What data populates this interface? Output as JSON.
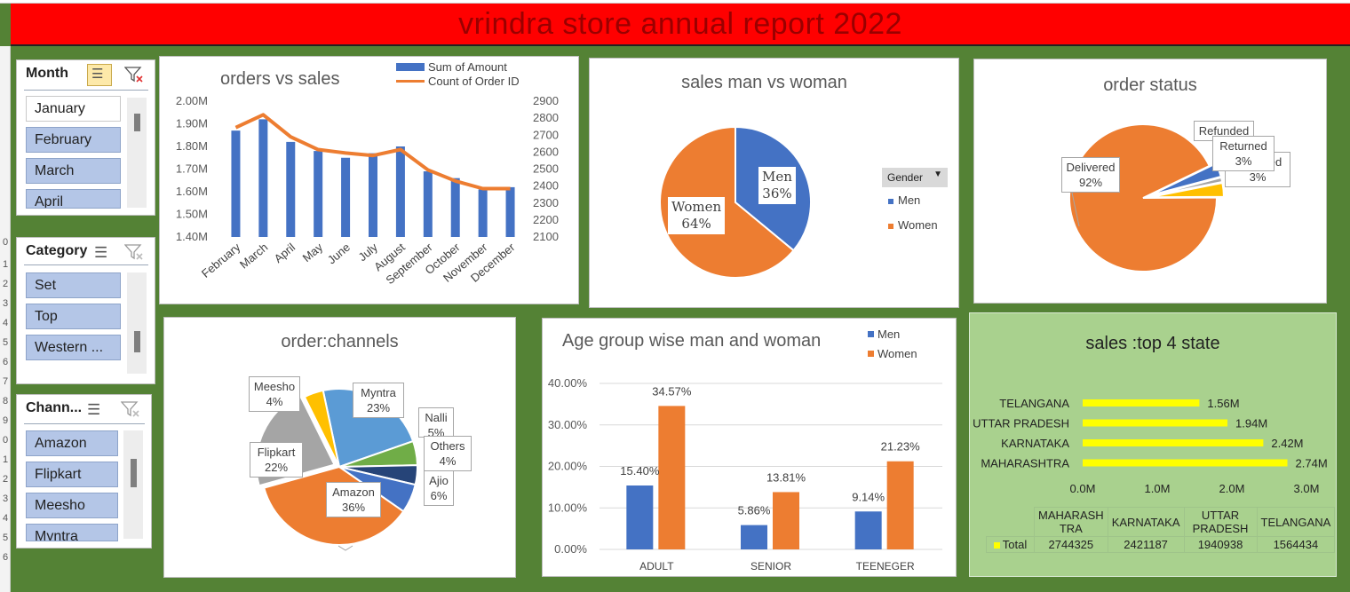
{
  "title": "vrindra store annual report 2022",
  "row_numbers": [
    "0",
    "1",
    "2",
    "3",
    "4",
    "5",
    "6",
    "7",
    "8",
    "9",
    "0",
    "1",
    "2",
    "3",
    "4",
    "5",
    "6"
  ],
  "slicers": {
    "month": {
      "header": "Month",
      "items": [
        "January",
        "February",
        "March",
        "April"
      ],
      "selected": [
        false,
        true,
        true,
        true
      ]
    },
    "category": {
      "header": "Category",
      "items": [
        "Set",
        "Top",
        "Western ..."
      ]
    },
    "channel": {
      "header": "Chann...",
      "items": [
        "Amazon",
        "Flipkart",
        "Meesho",
        "Myntra"
      ]
    }
  },
  "charts": {
    "orders_vs_sales": {
      "title": "orders vs sales",
      "legend": [
        "Sum of Amount",
        "Count of Order ID"
      ],
      "left_ticks": [
        "2.00M",
        "1.90M",
        "1.80M",
        "1.70M",
        "1.60M",
        "1.50M",
        "1.40M"
      ],
      "right_ticks": [
        "2900",
        "2800",
        "2700",
        "2600",
        "2500",
        "2400",
        "2300",
        "2200",
        "2100"
      ],
      "categories": [
        "February",
        "March",
        "April",
        "May",
        "June",
        "July",
        "August",
        "September",
        "October",
        "November",
        "December"
      ]
    },
    "gender": {
      "title": "sales man vs woman",
      "legend_header": "Gender",
      "labels": [
        {
          "name": "Men",
          "pct": "36%"
        },
        {
          "name": "Women",
          "pct": "64%"
        }
      ]
    },
    "status": {
      "title": "order status",
      "labels": {
        "delivered": "Delivered",
        "delivered_pct": "92%",
        "refunded": "Refunded",
        "returned": "Returned",
        "returned_pct": "3%",
        "cancelled_partial": "ed",
        "cancelled_pct": "3%"
      }
    },
    "channels": {
      "title": "order:channels",
      "labels": {
        "meesho": "Meesho",
        "meesho_pct": "4%",
        "myntra": "Myntra",
        "myntra_pct": "23%",
        "nalli": "Nalli",
        "nalli_pct": "5%",
        "others": "Others",
        "others_pct": "4%",
        "ajio": "Ajio",
        "ajio_pct": "6%",
        "flipkart": "Flipkart",
        "flipkart_pct": "22%",
        "amazon": "Amazon",
        "amazon_pct": "36%"
      }
    },
    "age": {
      "title": "Age group wise man and woman",
      "legend": [
        "Men",
        "Women"
      ],
      "ticks": [
        "40.00%",
        "30.00%",
        "20.00%",
        "10.00%",
        "0.00%"
      ],
      "categories": [
        "ADULT",
        "SENIOR",
        "TEENEGER"
      ],
      "men_labels": [
        "15.40%",
        "5.86%",
        "9.14%"
      ],
      "women_labels": [
        "34.57%",
        "13.81%",
        "21.23%"
      ]
    },
    "states": {
      "title": "sales :top 4 state",
      "names": [
        "TELANGANA",
        "UTTAR PRADESH",
        "KARNATAKA",
        "MAHARASHTRA"
      ],
      "value_labels": [
        "1.56M",
        "1.94M",
        "2.42M",
        "2.74M"
      ],
      "ticks": [
        "0.0M",
        "1.0M",
        "2.0M",
        "3.0M"
      ],
      "table_headers": [
        "MAHARASH TRA",
        "KARNATAKA",
        "UTTAR PRADESH",
        "TELANGANA"
      ],
      "row_label": "Total",
      "row_values": [
        "2744325",
        "2421187",
        "1940938",
        "1564434"
      ]
    }
  },
  "chart_data": [
    {
      "type": "bar",
      "title": "orders vs sales",
      "categories": [
        "February",
        "March",
        "April",
        "May",
        "June",
        "July",
        "August",
        "September",
        "October",
        "November",
        "December"
      ],
      "series": [
        {
          "name": "Sum of Amount",
          "values": [
            1.87,
            1.92,
            1.82,
            1.78,
            1.75,
            1.77,
            1.8,
            1.69,
            1.66,
            1.61,
            1.62
          ],
          "unit": "M"
        },
        {
          "name": "Count of Order ID",
          "type": "line",
          "axis": "secondary",
          "values": [
            2745,
            2820,
            2690,
            2615,
            2595,
            2580,
            2615,
            2495,
            2430,
            2385,
            2385
          ]
        }
      ],
      "ylim": [
        1.4,
        2.0
      ],
      "y2lim": [
        2100,
        2900
      ]
    },
    {
      "type": "pie",
      "title": "sales man vs woman",
      "categories": [
        "Men",
        "Women"
      ],
      "values": [
        36,
        64
      ],
      "legend": "right"
    },
    {
      "type": "pie",
      "title": "order status",
      "categories": [
        "Delivered",
        "Refunded",
        "Returned",
        "Cancelled"
      ],
      "values": [
        92,
        1,
        3,
        3
      ]
    },
    {
      "type": "pie",
      "title": "order:channels",
      "categories": [
        "Amazon",
        "Myntra",
        "Flipkart",
        "Ajio",
        "Nalli",
        "Meesho",
        "Others"
      ],
      "values": [
        36,
        23,
        22,
        6,
        5,
        4,
        4
      ]
    },
    {
      "type": "bar",
      "title": "Age group wise man and woman",
      "categories": [
        "ADULT",
        "SENIOR",
        "TEENEGER"
      ],
      "series": [
        {
          "name": "Men",
          "values": [
            15.4,
            5.86,
            9.14
          ]
        },
        {
          "name": "Women",
          "values": [
            34.57,
            13.81,
            21.23
          ]
        }
      ],
      "ylim": [
        0,
        40
      ],
      "legend": "top-right"
    },
    {
      "type": "bar",
      "orientation": "horizontal",
      "title": "sales :top 4 state",
      "categories": [
        "TELANGANA",
        "UTTAR PRADESH",
        "KARNATAKA",
        "MAHARASHTRA"
      ],
      "values": [
        1564434,
        1940938,
        2421187,
        2744325
      ],
      "xlim": [
        0,
        3000000
      ]
    }
  ],
  "colors": {
    "blue": "#4472c4",
    "orange": "#ed7d31",
    "gray": "#a5a5a5",
    "yellow": "#ffc000",
    "lightblue": "#5b9bd5",
    "green": "#70ad47",
    "navy": "#264478",
    "bright_yellow": "#ffff00",
    "title_red": "#ff0000",
    "background": "#548235"
  }
}
